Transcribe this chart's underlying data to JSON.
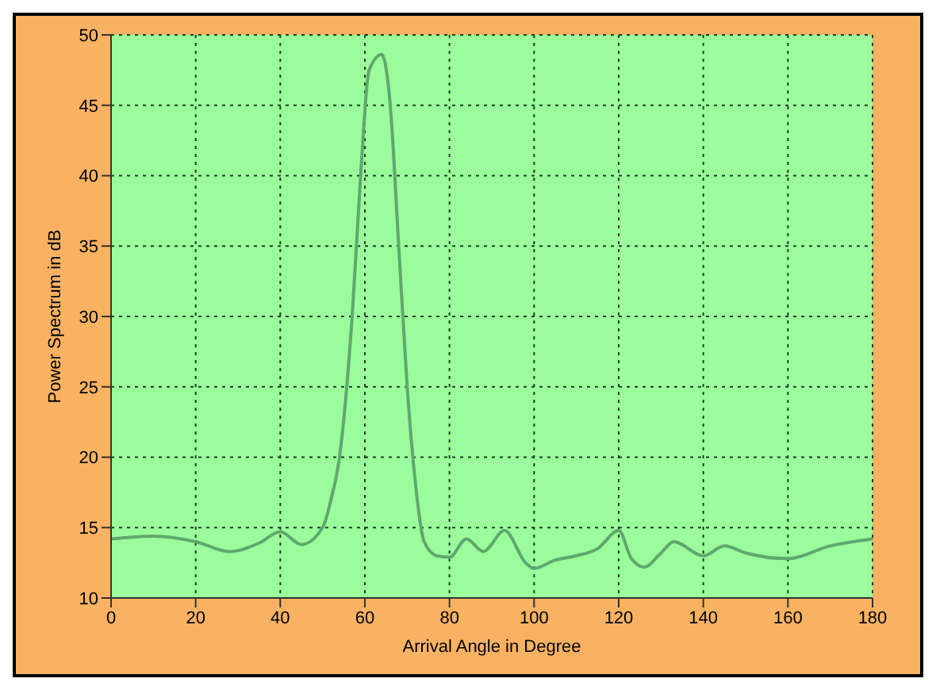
{
  "chart_data": {
    "type": "line",
    "xlabel": "Arrival Angle in Degree",
    "ylabel": "Power Spectrum in dB",
    "x": [
      0,
      10,
      20,
      28,
      35,
      40,
      45,
      50,
      52,
      54,
      56,
      57,
      59,
      61,
      64,
      66,
      68,
      70,
      72,
      74,
      77,
      80,
      84,
      88,
      93,
      98,
      100,
      105,
      110,
      115,
      120,
      123,
      126,
      130,
      133,
      140,
      145,
      150,
      160,
      170,
      180
    ],
    "series": [
      {
        "color": "#5fa86f",
        "values": [
          14.2,
          14.4,
          14.0,
          13.3,
          13.9,
          14.7,
          13.8,
          15,
          17,
          20,
          26,
          30,
          40,
          47.5,
          48.6,
          45,
          35,
          25,
          18,
          14,
          13,
          12.9,
          14.2,
          13.3,
          14.8,
          12.5,
          12.1,
          12.7,
          13,
          13.5,
          14.8,
          12.8,
          12.2,
          13.2,
          14,
          13,
          13.7,
          13.2,
          12.8,
          13.7,
          14.2
        ]
      }
    ],
    "xlim": [
      0,
      180
    ],
    "xticks": [
      0,
      20,
      40,
      60,
      80,
      100,
      120,
      140,
      160,
      180
    ],
    "ylim": [
      10,
      50
    ],
    "yticks": [
      10,
      15,
      20,
      25,
      30,
      35,
      40,
      45,
      50
    ],
    "grid": true,
    "marker": "none",
    "line_style": "solid"
  }
}
